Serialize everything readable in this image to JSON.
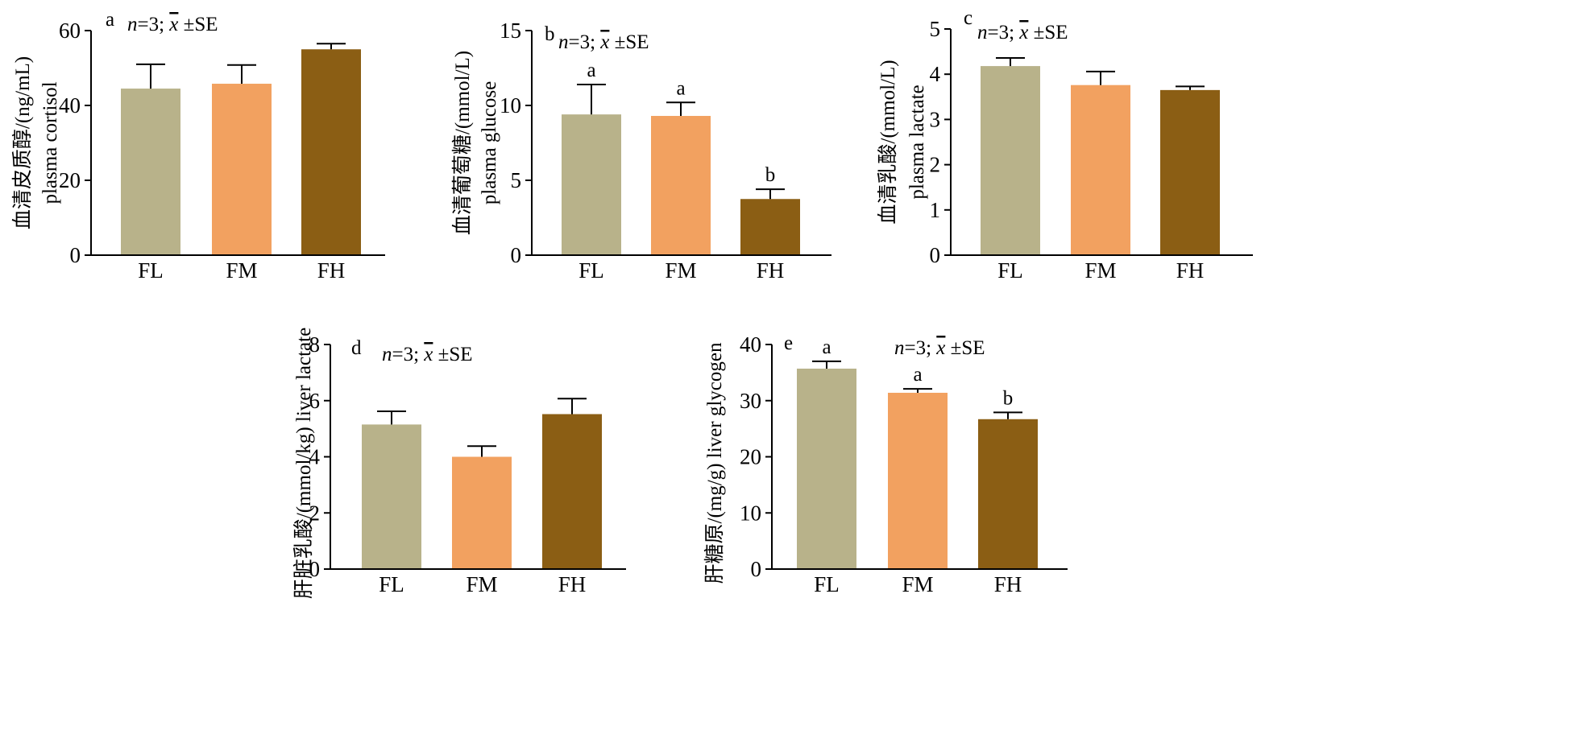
{
  "colors": {
    "FL": "#b8b28a",
    "FM": "#f2a160",
    "FH": "#8b5e14",
    "axis": "#000000"
  },
  "chart_data": [
    {
      "type": "bar",
      "panel": "a",
      "note": {
        "n": "n",
        "rest": "=3; ",
        "xbar": "x",
        "pm": " ±SE"
      },
      "ylabel_cn": "血清皮质醇/(ng/mL)",
      "ylabel_en": "plasma cortisol",
      "categories": [
        "FL",
        "FM",
        "FH"
      ],
      "values": [
        44.5,
        45.8,
        55.0
      ],
      "errors": [
        6.5,
        5.0,
        1.5
      ],
      "sig_letters": [
        "",
        "",
        ""
      ],
      "ylim": [
        0,
        60
      ],
      "yticks": [
        0,
        20,
        40,
        60
      ]
    },
    {
      "type": "bar",
      "panel": "b",
      "note": {
        "n": "n",
        "rest": "=3; ",
        "xbar": "x",
        "pm": " ±SE"
      },
      "ylabel_cn": "血清葡萄糖/(mmol/L)",
      "ylabel_en": "plasma glucose",
      "categories": [
        "FL",
        "FM",
        "FH"
      ],
      "values": [
        9.4,
        9.3,
        3.75
      ],
      "errors": [
        2.0,
        0.9,
        0.65
      ],
      "sig_letters": [
        "a",
        "a",
        "b"
      ],
      "ylim": [
        0,
        15
      ],
      "yticks": [
        0,
        5,
        10,
        15
      ]
    },
    {
      "type": "bar",
      "panel": "c",
      "note": {
        "n": "n",
        "rest": "=3; ",
        "xbar": "x",
        "pm": " ±SE"
      },
      "ylabel_cn": "血清乳酸/(mmol/L)",
      "ylabel_en": "plasma lactate",
      "categories": [
        "FL",
        "FM",
        "FH"
      ],
      "values": [
        4.18,
        3.76,
        3.65
      ],
      "errors": [
        0.18,
        0.3,
        0.08
      ],
      "sig_letters": [
        "",
        "",
        ""
      ],
      "ylim": [
        0,
        5
      ],
      "yticks": [
        0,
        1,
        2,
        3,
        4,
        5
      ]
    },
    {
      "type": "bar",
      "panel": "d",
      "note": {
        "n": "n",
        "rest": "=3; ",
        "xbar": "x",
        "pm": " ±SE"
      },
      "ylabel_cn": "肝脏乳酸/(mmol/kg)",
      "ylabel_en": "liver lactate",
      "categories": [
        "FL",
        "FM",
        "FH"
      ],
      "values": [
        5.15,
        4.0,
        5.52
      ],
      "errors": [
        0.47,
        0.38,
        0.55
      ],
      "sig_letters": [
        "",
        "",
        ""
      ],
      "ylim": [
        0,
        8
      ],
      "yticks": [
        0,
        2,
        4,
        6,
        8
      ]
    },
    {
      "type": "bar",
      "panel": "e",
      "note": {
        "n": "n",
        "rest": "=3; ",
        "xbar": "x",
        "pm": " ±SE"
      },
      "ylabel_cn": "肝糖原/(mg/g)",
      "ylabel_en": "liver glycogen",
      "categories": [
        "FL",
        "FM",
        "FH"
      ],
      "values": [
        35.7,
        31.4,
        26.7
      ],
      "errors": [
        1.3,
        0.7,
        1.2
      ],
      "sig_letters": [
        "a",
        "a",
        "b"
      ],
      "ylim": [
        0,
        40
      ],
      "yticks": [
        0,
        10,
        20,
        30,
        40
      ]
    }
  ]
}
